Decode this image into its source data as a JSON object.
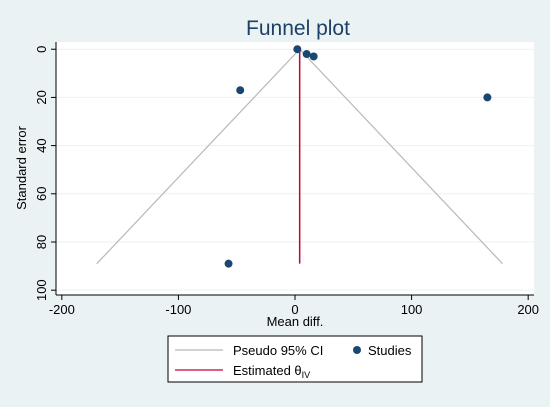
{
  "chart_data": {
    "type": "scatter",
    "title": "Funnel plot",
    "xlabel": "Mean diff.",
    "ylabel": "Standard error",
    "xlim": [
      -205,
      205
    ],
    "ylim": [
      102,
      -3
    ],
    "y_reversed": true,
    "x_ticks": [
      -200,
      -100,
      0,
      100,
      200
    ],
    "y_ticks": [
      0,
      20,
      40,
      60,
      80,
      100
    ],
    "grid": "y-major",
    "legend_position": "bottom",
    "colors": {
      "plot_bg": "#ffffff",
      "outer_bg": "#eaf2f3",
      "studies": "#1a476f",
      "ci": "#b8b8b8",
      "estimate": "#c10534",
      "grid": "#eaf2f3"
    },
    "series": [
      {
        "name": "Studies",
        "kind": "points",
        "points": [
          {
            "x": 2,
            "y": 0
          },
          {
            "x": 10,
            "y": 2
          },
          {
            "x": 16,
            "y": 3
          },
          {
            "x": -47,
            "y": 17
          },
          {
            "x": 165,
            "y": 20
          },
          {
            "x": -57,
            "y": 89
          }
        ]
      },
      {
        "name": "Pseudo 95% CI",
        "kind": "line",
        "points": [
          {
            "x": -170,
            "y": 89
          },
          {
            "x": 4,
            "y": 0
          },
          {
            "x": 178,
            "y": 89
          }
        ]
      },
      {
        "name": "Estimated θ",
        "name_subscript": "IV",
        "kind": "vline",
        "points": [
          {
            "x": 4,
            "y": 0
          },
          {
            "x": 4,
            "y": 89
          }
        ]
      }
    ]
  }
}
